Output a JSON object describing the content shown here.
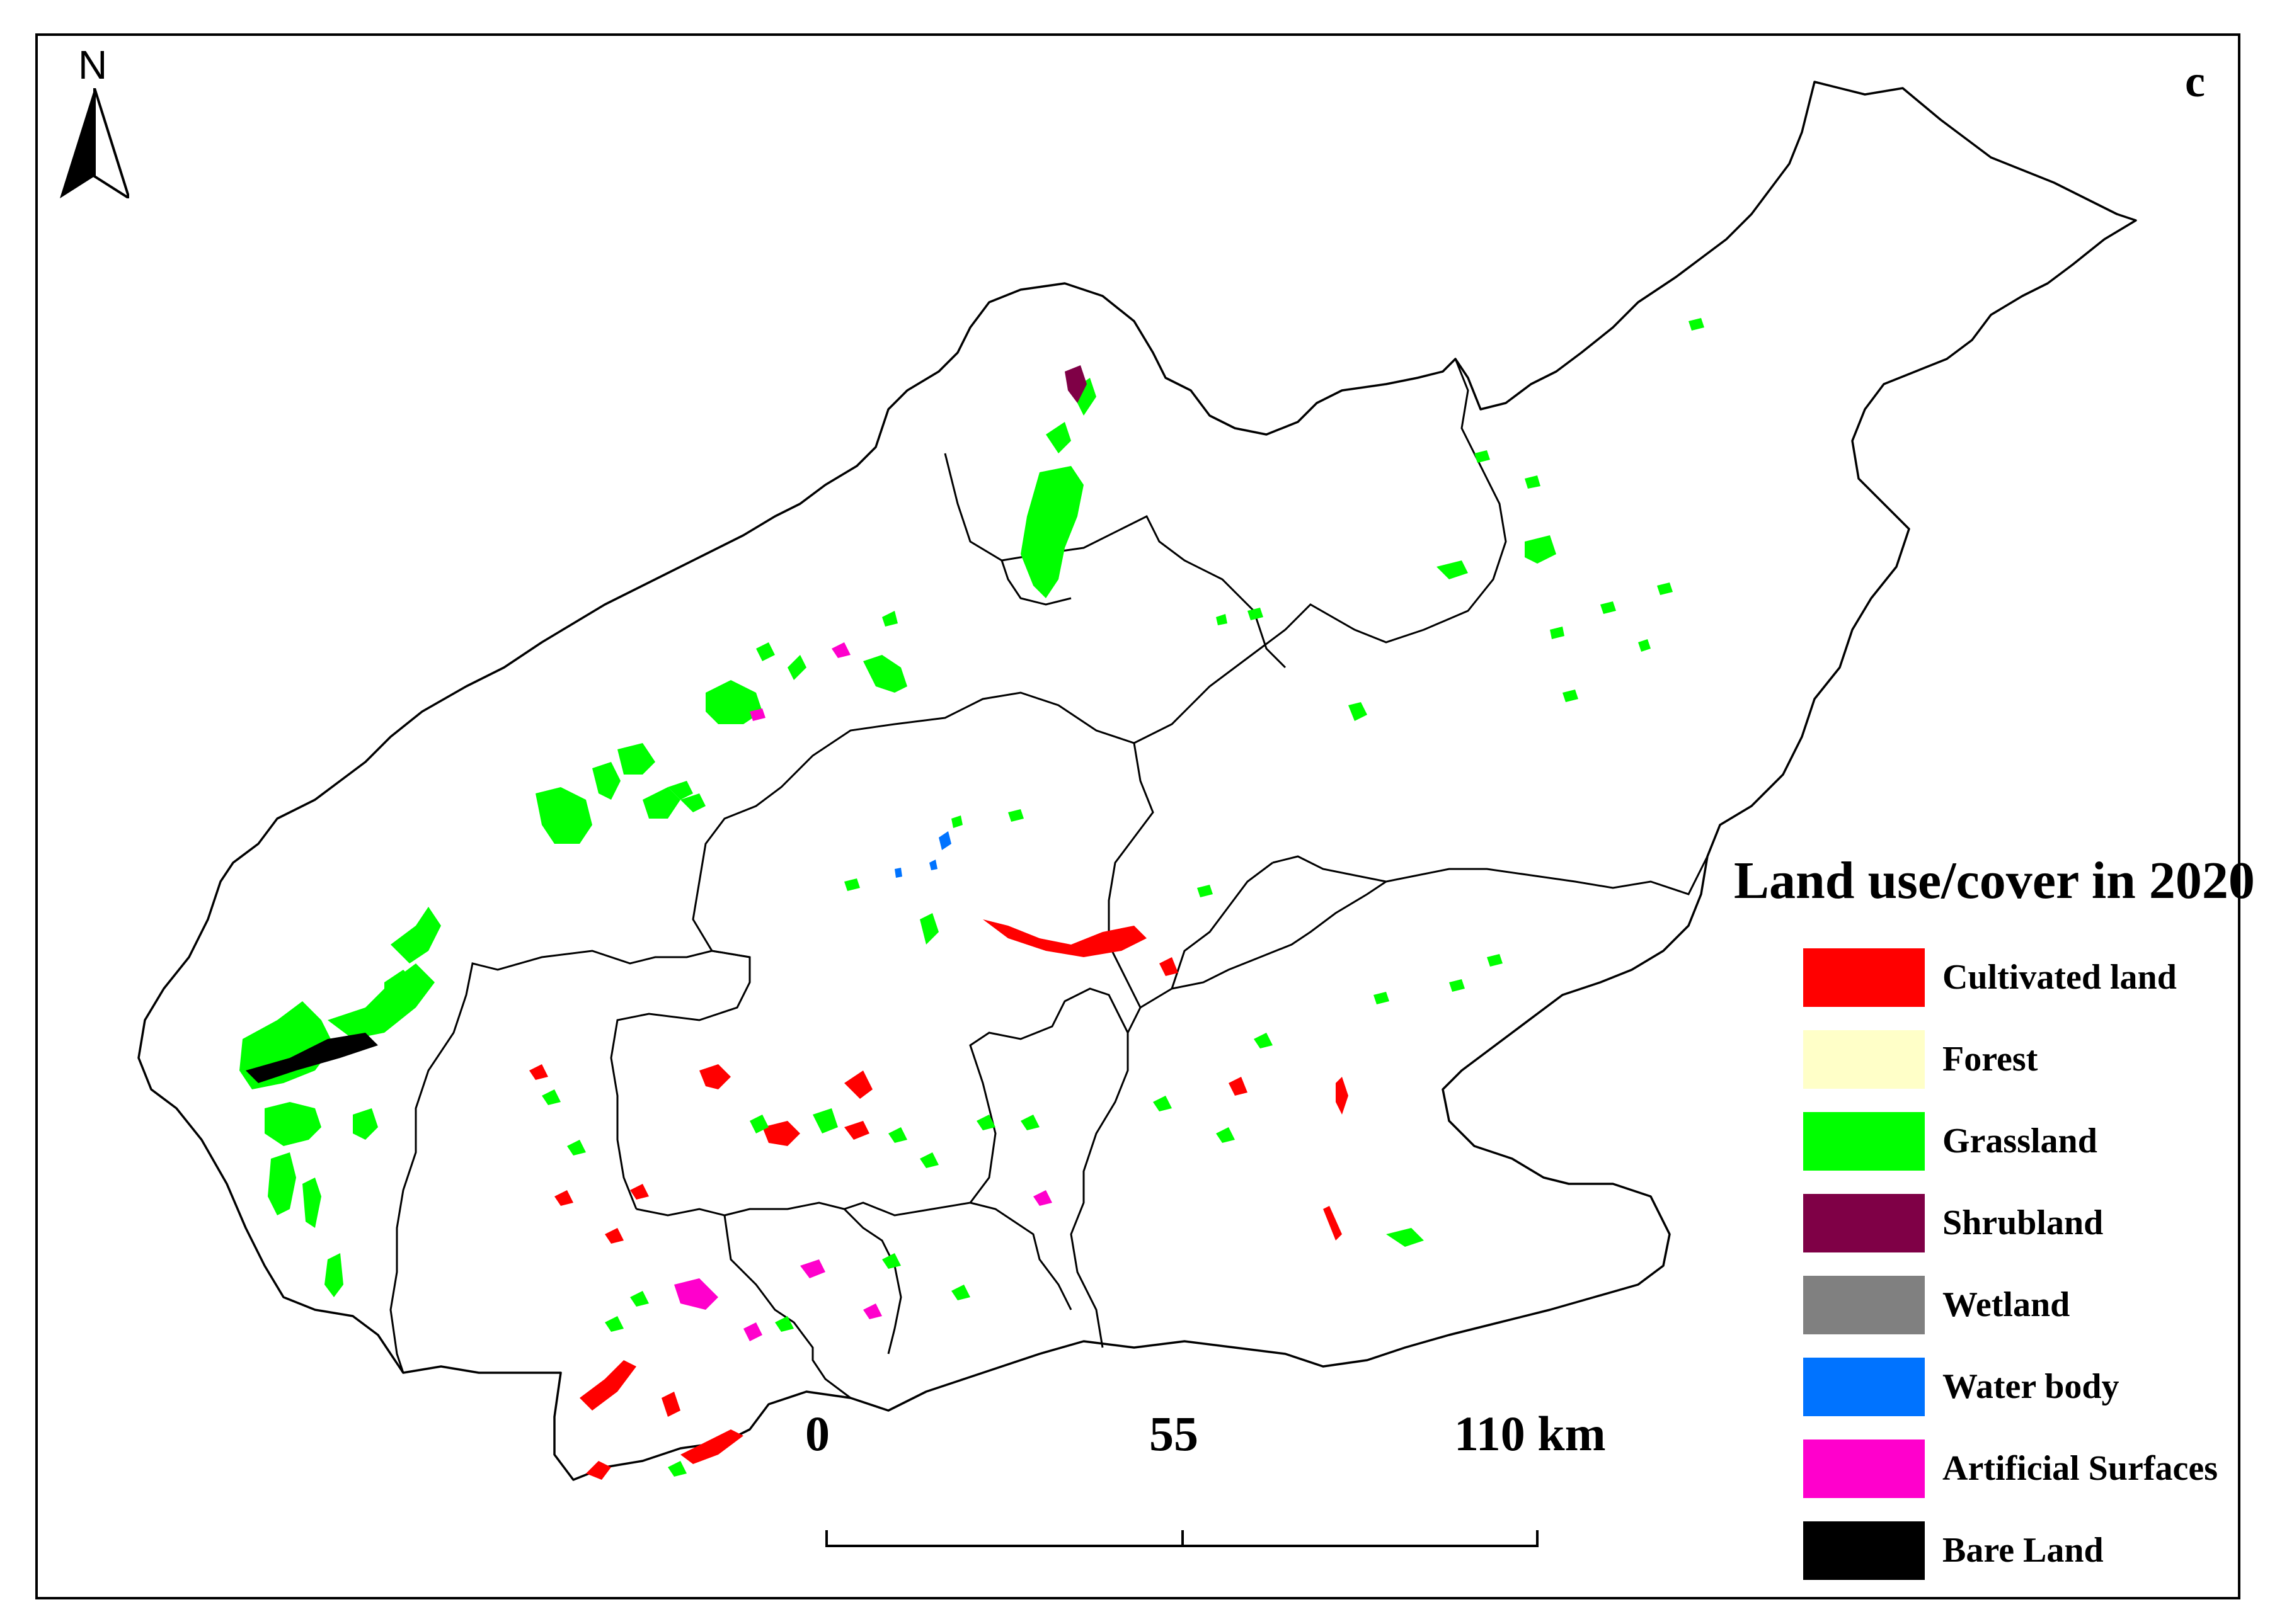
{
  "panel_letter": "c",
  "north_arrow": {
    "label": "N",
    "icon": "north-arrow-icon"
  },
  "legend": {
    "title": "Land use/cover in 2020",
    "items": [
      {
        "label": "Cultivated land",
        "color": "#ff0000"
      },
      {
        "label": "Forest",
        "color": "#ffffc8"
      },
      {
        "label": "Grassland",
        "color": "#00ff00"
      },
      {
        "label": "Shrubland",
        "color": "#7f0046"
      },
      {
        "label": "Wetland",
        "color": "#808080"
      },
      {
        "label": "Water body",
        "color": "#0073ff"
      },
      {
        "label": "Artificial Surfaces",
        "color": "#ff00cc"
      },
      {
        "label": "Bare Land",
        "color": "#000000"
      }
    ]
  },
  "scale_bar": {
    "labels": [
      "0",
      "55",
      "110 km"
    ]
  },
  "colors": {
    "boundary": "#000000",
    "background": "#ffffff"
  }
}
